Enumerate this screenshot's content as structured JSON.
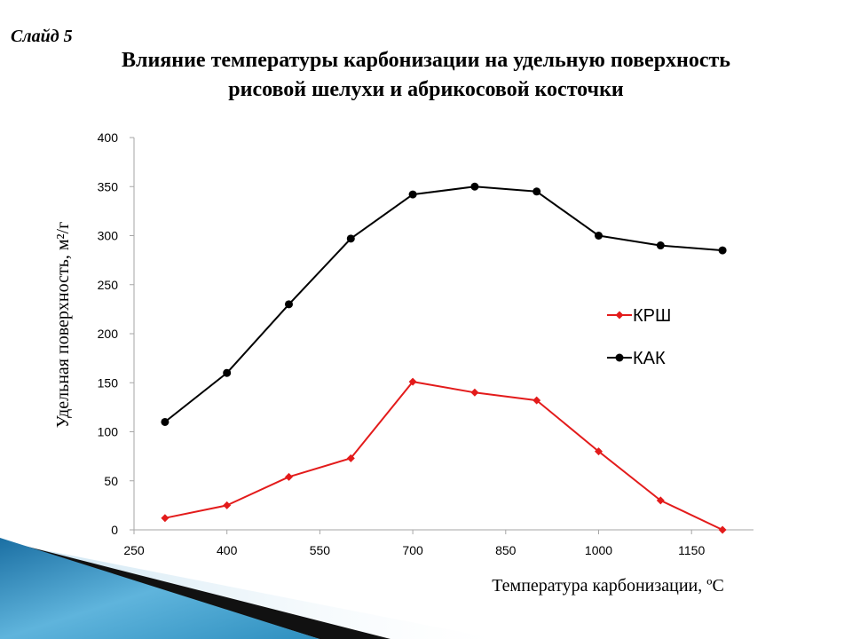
{
  "slide": {
    "label": "Слайд 5"
  },
  "title_lines": [
    "Влияние температуры карбонизации на удельную поверхность",
    "рисовой шелухи и абрикосовой косточки"
  ],
  "colors": {
    "krsh": "#e31b1b",
    "kak": "#000000",
    "axis": "#a6a6a6",
    "decor_blue": "#2e8fbf"
  },
  "chart_data": {
    "type": "line",
    "xlabel": "Температура карбонизации, ºС",
    "ylabel": "Удельная поверхность, м²/г",
    "xlim": [
      250,
      1250
    ],
    "ylim": [
      0,
      400
    ],
    "xticks": [
      250,
      400,
      550,
      700,
      850,
      1000,
      1150
    ],
    "yticks": [
      0,
      50,
      100,
      150,
      200,
      250,
      300,
      350,
      400
    ],
    "grid": false,
    "legend_position": "right",
    "x": [
      300,
      400,
      500,
      600,
      700,
      800,
      900,
      1000,
      1100,
      1200
    ],
    "series": [
      {
        "name": "КРШ",
        "marker": "diamond",
        "color": "#e31b1b",
        "values": [
          12,
          25,
          54,
          73,
          151,
          140,
          132,
          80,
          30,
          0
        ]
      },
      {
        "name": "КАК",
        "marker": "circle",
        "color": "#000000",
        "values": [
          110,
          160,
          230,
          297,
          342,
          350,
          345,
          300,
          290,
          285
        ]
      }
    ]
  }
}
